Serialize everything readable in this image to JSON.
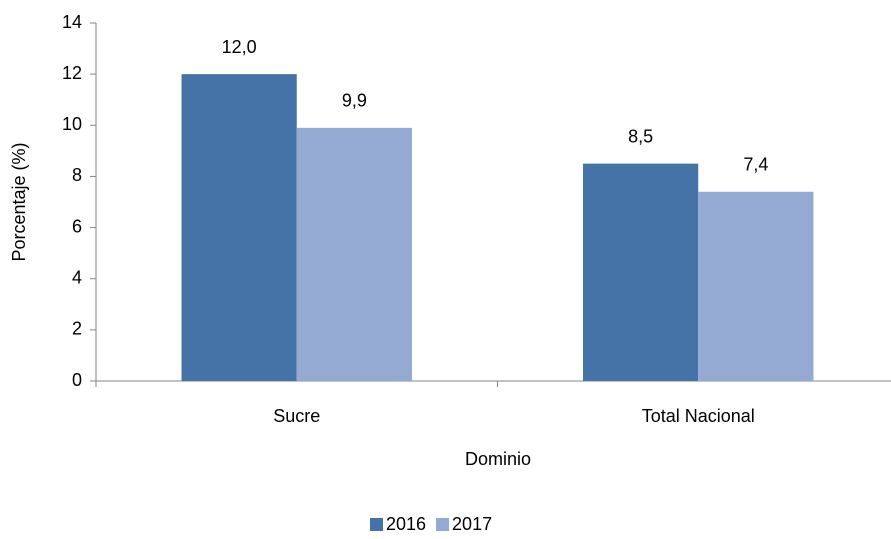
{
  "chart_data": {
    "type": "bar",
    "categories": [
      "Sucre",
      "Total Nacional"
    ],
    "series": [
      {
        "name": "2016",
        "color": "#4573a7",
        "values": [
          12.0,
          8.5
        ],
        "value_labels": [
          "12,0",
          "8,5"
        ]
      },
      {
        "name": "2017",
        "color": "#95aad3",
        "values": [
          9.9,
          7.4
        ],
        "value_labels": [
          "9,9",
          "7,4"
        ]
      }
    ],
    "xlabel": "Dominio",
    "ylabel": "Porcentaje (%)",
    "ylim": [
      0,
      14
    ],
    "yticks": [
      0,
      2,
      4,
      6,
      8,
      10,
      12,
      14
    ],
    "grid": false,
    "legend": "bottom"
  }
}
